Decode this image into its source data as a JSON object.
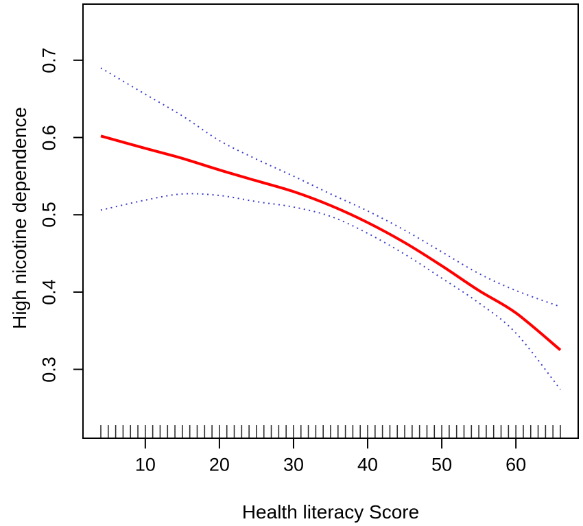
{
  "figure": {
    "background": "#ffffff",
    "border_color": "#000000",
    "text_color": "#000000"
  },
  "chart_data": {
    "type": "line",
    "title": "",
    "xlabel": "Health literacy Score",
    "ylabel": "High nicotine dependence",
    "xlim": [
      1.5,
      68.5
    ],
    "ylim": [
      0.21,
      0.7735
    ],
    "grid": false,
    "legend": false,
    "x_ticks": [
      10,
      20,
      30,
      40,
      50,
      60
    ],
    "x_tick_labels": [
      "10",
      "20",
      "30",
      "40",
      "50",
      "60"
    ],
    "y_ticks": [
      0.3,
      0.4,
      0.5,
      0.6,
      0.7
    ],
    "y_tick_labels": [
      "0.3",
      "0.4",
      "0.5",
      "0.6",
      "0.7"
    ],
    "x": [
      4,
      10,
      15,
      20,
      25,
      30,
      35,
      40,
      45,
      50,
      55,
      60,
      66
    ],
    "series": [
      {
        "name": "fitted_probability",
        "style": "solid",
        "color": "#ff0000",
        "width": 4,
        "values": [
          0.602,
          0.586,
          0.573,
          0.558,
          0.544,
          0.53,
          0.512,
          0.49,
          0.464,
          0.434,
          0.402,
          0.373,
          0.325
        ]
      },
      {
        "name": "upper_95_ci",
        "style": "dotted",
        "color": "#3a3ac8",
        "width": 2,
        "values": [
          0.69,
          0.656,
          0.628,
          0.596,
          0.572,
          0.55,
          0.527,
          0.505,
          0.48,
          0.452,
          0.424,
          0.402,
          0.381
        ]
      },
      {
        "name": "lower_95_ci",
        "style": "dotted",
        "color": "#3a3ac8",
        "width": 2,
        "values": [
          0.506,
          0.519,
          0.527,
          0.525,
          0.517,
          0.51,
          0.498,
          0.476,
          0.449,
          0.418,
          0.386,
          0.347,
          0.274
        ]
      }
    ],
    "rug": {
      "start": 4,
      "end": 66,
      "step": 1,
      "color": "#2e2e2e"
    }
  }
}
